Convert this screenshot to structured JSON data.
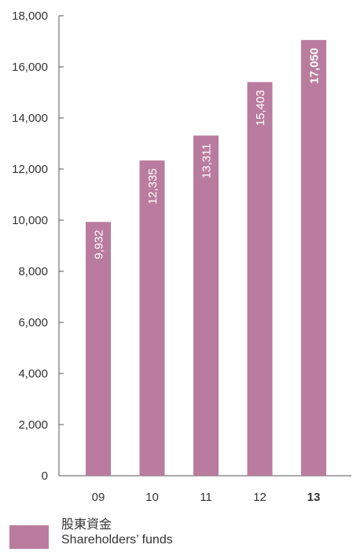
{
  "chart_data": {
    "type": "bar",
    "categories": [
      "09",
      "10",
      "11",
      "12",
      "13"
    ],
    "highlight_category": "13",
    "series": [
      {
        "name": "Shareholders' funds",
        "values": [
          9932,
          12335,
          13311,
          15403,
          17050
        ],
        "data_labels": [
          "9,932",
          "12,335",
          "13,311",
          "15,403",
          "17,050"
        ]
      }
    ],
    "yticks": [
      0,
      2000,
      4000,
      6000,
      8000,
      10000,
      12000,
      14000,
      16000,
      18000
    ],
    "ytick_labels": [
      "0",
      "2,000",
      "4,000",
      "6,000",
      "8,000",
      "10,000",
      "12,000",
      "14,000",
      "16,000",
      "18,000"
    ],
    "ylim": [
      0,
      18000
    ],
    "title": "",
    "xlabel": "",
    "ylabel": "",
    "grid": false,
    "legend_position": "bottom-left",
    "colors": {
      "bar": "#b97c9e",
      "axis": "#555555",
      "text": "#333333",
      "label_on_bar": "#ffffff"
    }
  },
  "legend": {
    "line1": "股東資金",
    "line2": "Shareholders’ funds"
  }
}
